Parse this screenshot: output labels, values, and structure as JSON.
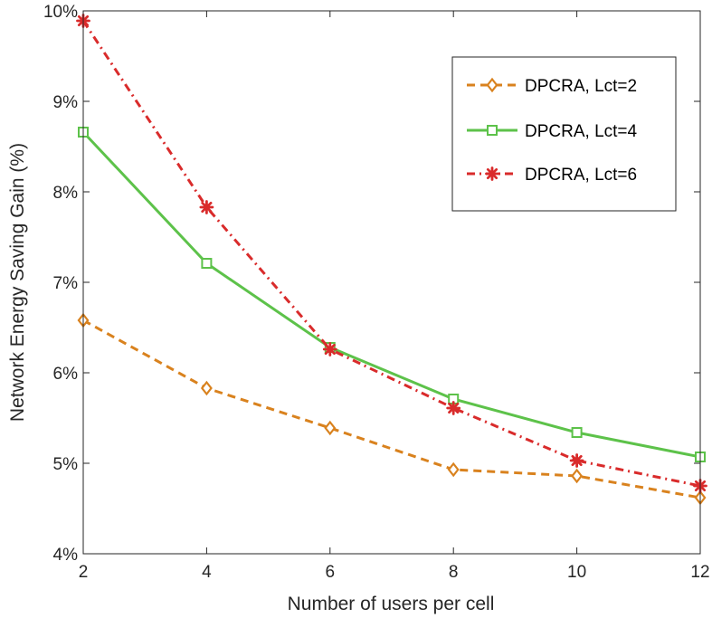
{
  "chart_data": {
    "type": "line",
    "title": "",
    "xlabel": "Number of users per cell",
    "ylabel": "Network Energy Saving Gain (%)",
    "x": [
      2,
      4,
      6,
      8,
      10,
      12
    ],
    "xlim": [
      2,
      12
    ],
    "ylim": [
      4,
      10
    ],
    "x_ticks": [
      "2",
      "4",
      "6",
      "8",
      "10",
      "12"
    ],
    "y_ticks": [
      "4%",
      "5%",
      "6%",
      "7%",
      "8%",
      "9%",
      "10%"
    ],
    "grid": false,
    "legend_position": "top-right",
    "series": [
      {
        "name": "DPCRA, Lct=2",
        "values": [
          6.58,
          5.83,
          5.39,
          4.93,
          4.86,
          4.62
        ],
        "color": "#D9821E",
        "line_style": "dashed",
        "marker": "diamond"
      },
      {
        "name": "DPCRA, Lct=4",
        "values": [
          8.66,
          7.21,
          6.28,
          5.71,
          5.34,
          5.07
        ],
        "color": "#5DC24A",
        "line_style": "solid",
        "marker": "square"
      },
      {
        "name": "DPCRA, Lct=6",
        "values": [
          9.89,
          7.83,
          6.26,
          5.61,
          5.03,
          4.75
        ],
        "color": "#D92B2B",
        "line_style": "dash-dot",
        "marker": "asterisk"
      }
    ]
  }
}
